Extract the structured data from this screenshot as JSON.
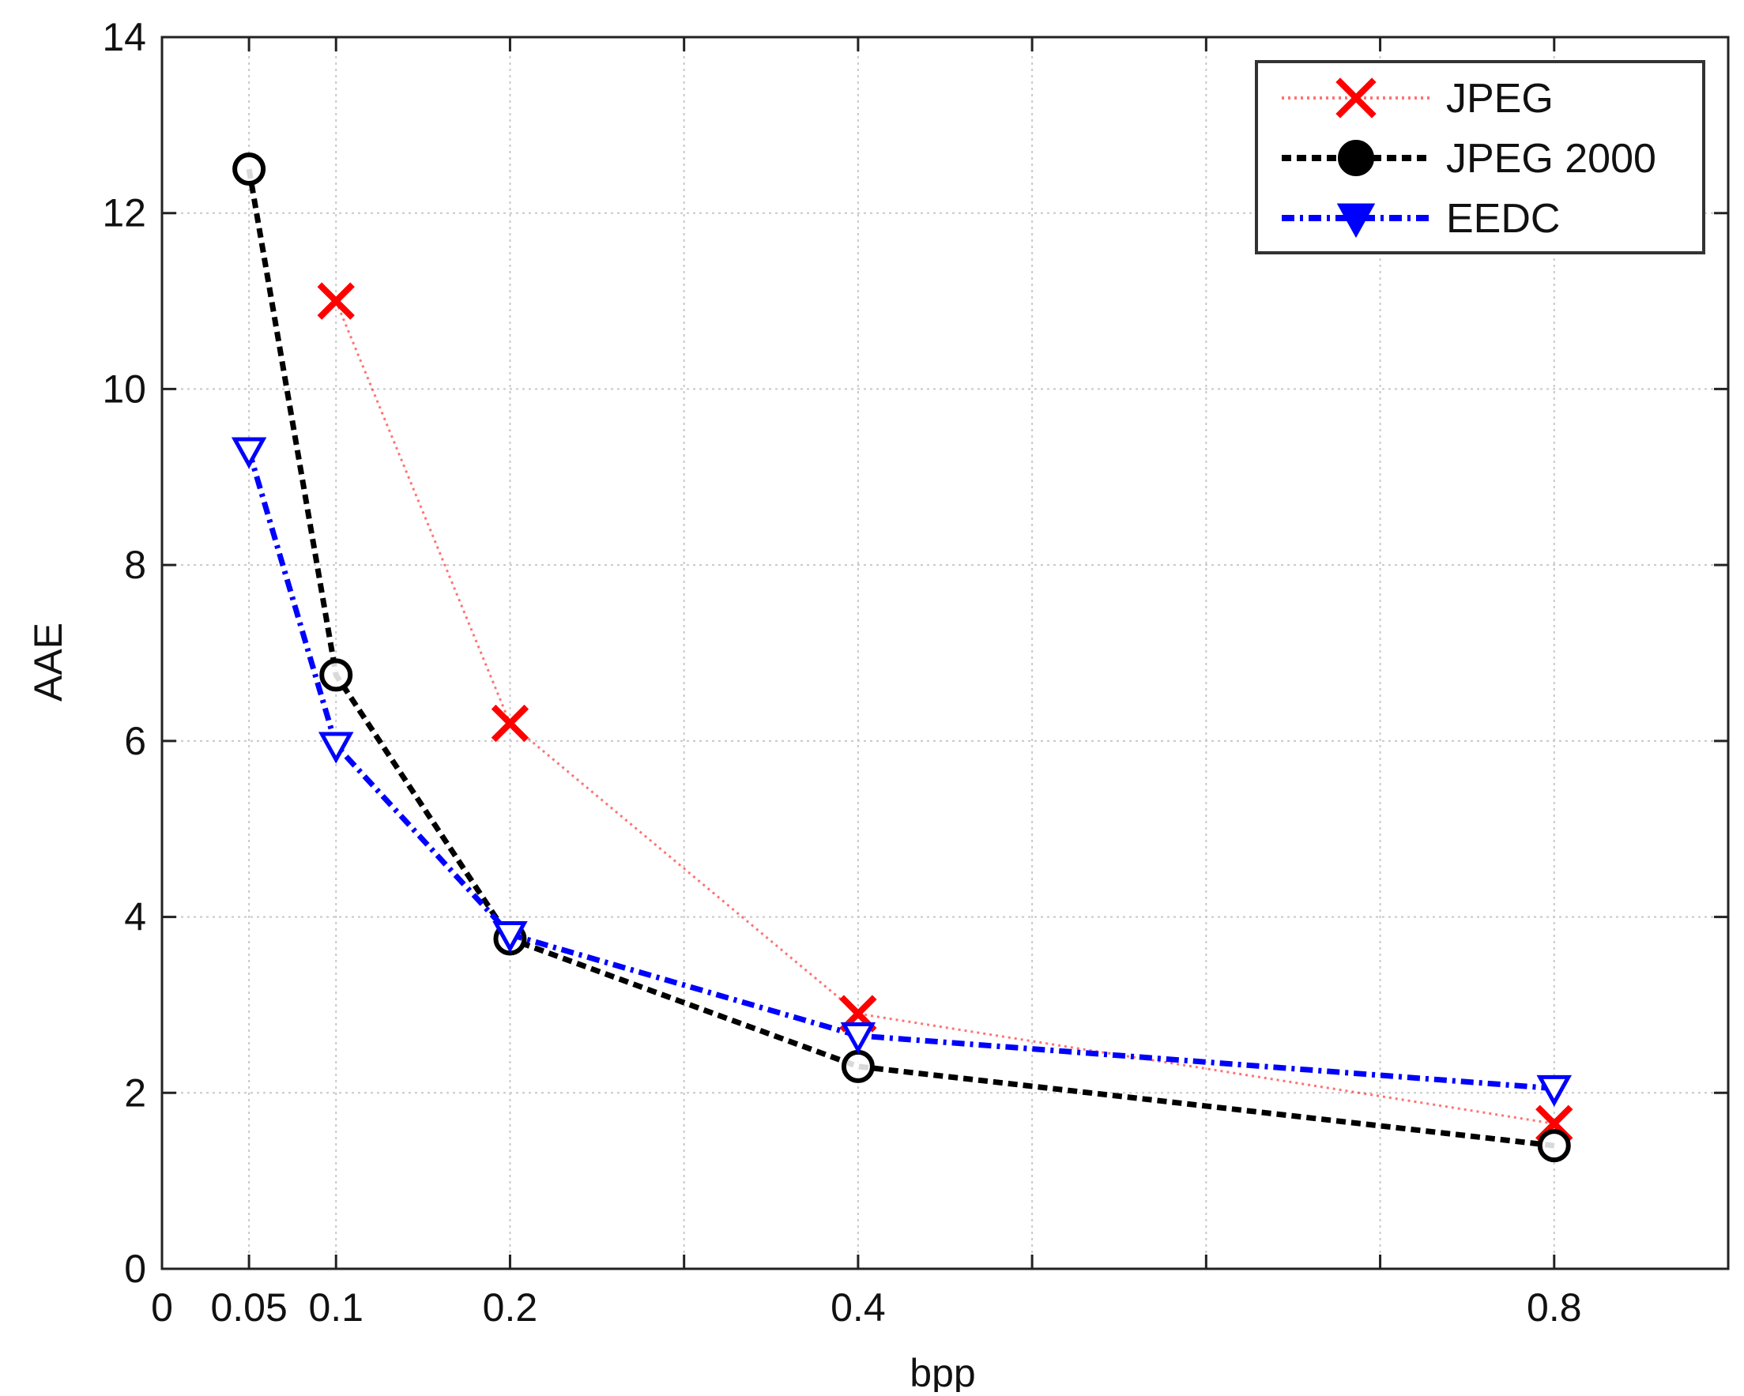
{
  "chart_data": {
    "type": "line",
    "title": "",
    "xlabel": "bpp",
    "ylabel": "AAE",
    "xlim": [
      0,
      0.9
    ],
    "ylim": [
      0,
      14
    ],
    "xticks": [
      0,
      0.05,
      0.1,
      0.2,
      0.3,
      0.4,
      0.5,
      0.6,
      0.7,
      0.8,
      0.9
    ],
    "xtick_labels": [
      "0",
      "0.05",
      "0.1",
      "0.2",
      "",
      "0.4",
      "",
      "",
      "",
      "0.8",
      ""
    ],
    "yticks": [
      0,
      2,
      4,
      6,
      8,
      10,
      12,
      14
    ],
    "ytick_labels": [
      "0",
      "2",
      "4",
      "6",
      "8",
      "10",
      "12",
      "14"
    ],
    "grid": true,
    "legend_position": "top-right",
    "series": [
      {
        "name": "JPEG",
        "x": [
          0.1,
          0.2,
          0.4,
          0.8
        ],
        "y": [
          11.0,
          6.2,
          2.9,
          1.65
        ],
        "color": "#ff0000",
        "line_style": "dotted",
        "marker": "x"
      },
      {
        "name": "JPEG 2000",
        "x": [
          0.05,
          0.1,
          0.2,
          0.4,
          0.8
        ],
        "y": [
          12.5,
          6.75,
          3.75,
          2.3,
          1.4
        ],
        "color": "#000000",
        "line_style": "dashed",
        "marker": "o"
      },
      {
        "name": "EEDC",
        "x": [
          0.05,
          0.1,
          0.2,
          0.4,
          0.8
        ],
        "y": [
          9.3,
          5.95,
          3.8,
          2.65,
          2.05
        ],
        "color": "#0000ff",
        "line_style": "dashdot",
        "marker": "v"
      }
    ]
  }
}
